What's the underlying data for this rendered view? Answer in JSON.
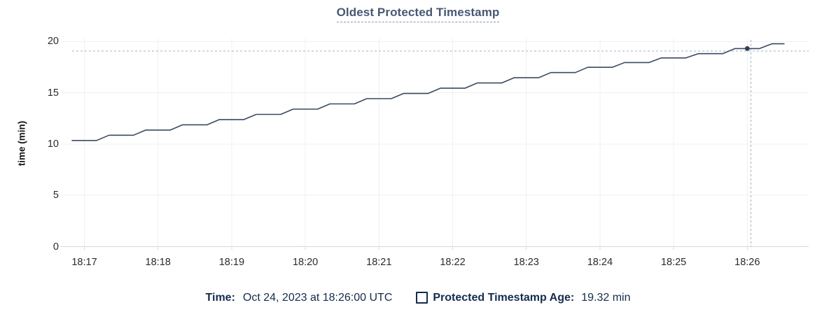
{
  "chart_data": {
    "type": "line",
    "title": "Oldest Protected Timestamp",
    "xlabel": "",
    "ylabel": "time (min)",
    "ylim": [
      0,
      20
    ],
    "y_ticks": [
      0,
      5,
      10,
      15,
      20
    ],
    "x_tick_labels": [
      "18:17",
      "18:18",
      "18:19",
      "18:20",
      "18:21",
      "18:22",
      "18:23",
      "18:24",
      "18:25",
      "18:26"
    ],
    "x_range": [
      "18:16:50",
      "18:26:30"
    ],
    "grid": true,
    "legend_position": "bottom",
    "series": [
      {
        "name": "Protected Timestamp Age",
        "unit": "min",
        "points": [
          [
            "18:16:50",
            10.35
          ],
          [
            "18:17:10",
            10.35
          ],
          [
            "18:17:20",
            10.86
          ],
          [
            "18:17:40",
            10.86
          ],
          [
            "18:17:50",
            11.37
          ],
          [
            "18:18:10",
            11.37
          ],
          [
            "18:18:20",
            11.88
          ],
          [
            "18:18:40",
            11.88
          ],
          [
            "18:18:50",
            12.39
          ],
          [
            "18:19:10",
            12.39
          ],
          [
            "18:19:20",
            12.9
          ],
          [
            "18:19:40",
            12.9
          ],
          [
            "18:19:50",
            13.41
          ],
          [
            "18:20:10",
            13.41
          ],
          [
            "18:20:20",
            13.92
          ],
          [
            "18:20:40",
            13.92
          ],
          [
            "18:20:50",
            14.43
          ],
          [
            "18:21:10",
            14.43
          ],
          [
            "18:21:20",
            14.94
          ],
          [
            "18:21:40",
            14.94
          ],
          [
            "18:21:50",
            15.45
          ],
          [
            "18:22:10",
            15.45
          ],
          [
            "18:22:20",
            15.96
          ],
          [
            "18:22:40",
            15.96
          ],
          [
            "18:22:50",
            16.47
          ],
          [
            "18:23:10",
            16.47
          ],
          [
            "18:23:20",
            16.98
          ],
          [
            "18:23:40",
            16.98
          ],
          [
            "18:23:50",
            17.49
          ],
          [
            "18:24:10",
            17.49
          ],
          [
            "18:24:20",
            17.95
          ],
          [
            "18:24:40",
            17.95
          ],
          [
            "18:24:50",
            18.4
          ],
          [
            "18:25:10",
            18.4
          ],
          [
            "18:25:20",
            18.82
          ],
          [
            "18:25:40",
            18.82
          ],
          [
            "18:25:50",
            19.32
          ],
          [
            "18:26:10",
            19.32
          ],
          [
            "18:26:20",
            19.78
          ],
          [
            "18:26:30",
            19.78
          ]
        ]
      }
    ],
    "hover": {
      "point_time": "18:26:00",
      "point_value": 19.32,
      "crosshair_time": "18:26:03",
      "crosshair_value": 19.08
    }
  },
  "legend": {
    "time_label": "Time:",
    "time_value": "Oct 24, 2023 at 18:26:00 UTC",
    "series_label": "Protected Timestamp Age:",
    "series_value": "19.32 min"
  },
  "colors": {
    "title_text": "#475872",
    "title_underline": "#8498b1",
    "series_line": "#3a4a63",
    "hover_dot": "#2e3d56",
    "crosshair": "#9fb3c0",
    "gridline": "#f0f0f0",
    "axis_line": "#d9d9d9",
    "tick_text": "#2b2b2b",
    "legend_text": "#152c4e"
  }
}
